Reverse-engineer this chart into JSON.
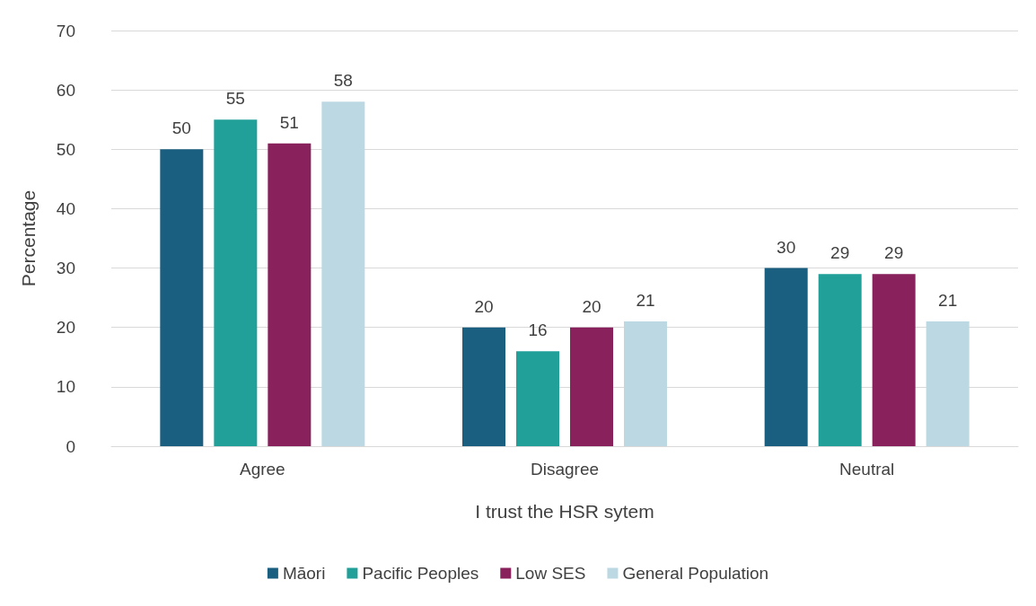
{
  "chart_data": {
    "type": "bar",
    "xlabel": "I trust the HSR sytem",
    "ylabel": "Percentage",
    "categories": [
      "Agree",
      "Disagree",
      "Neutral"
    ],
    "series": [
      {
        "name": "Māori",
        "color": "#1a5f80",
        "values": [
          50,
          20,
          30
        ]
      },
      {
        "name": "Pacific Peoples",
        "color": "#21a09a",
        "values": [
          55,
          16,
          29
        ]
      },
      {
        "name": "Low SES",
        "color": "#88215c",
        "values": [
          51,
          20,
          29
        ]
      },
      {
        "name": "General Population",
        "color": "#bcd9e3",
        "values": [
          58,
          21,
          21
        ]
      }
    ],
    "ylim": [
      0,
      70
    ],
    "yticks": [
      0,
      10,
      20,
      30,
      40,
      50,
      60,
      70
    ],
    "grid": "y",
    "legend": "bottom",
    "data_labels": true
  }
}
